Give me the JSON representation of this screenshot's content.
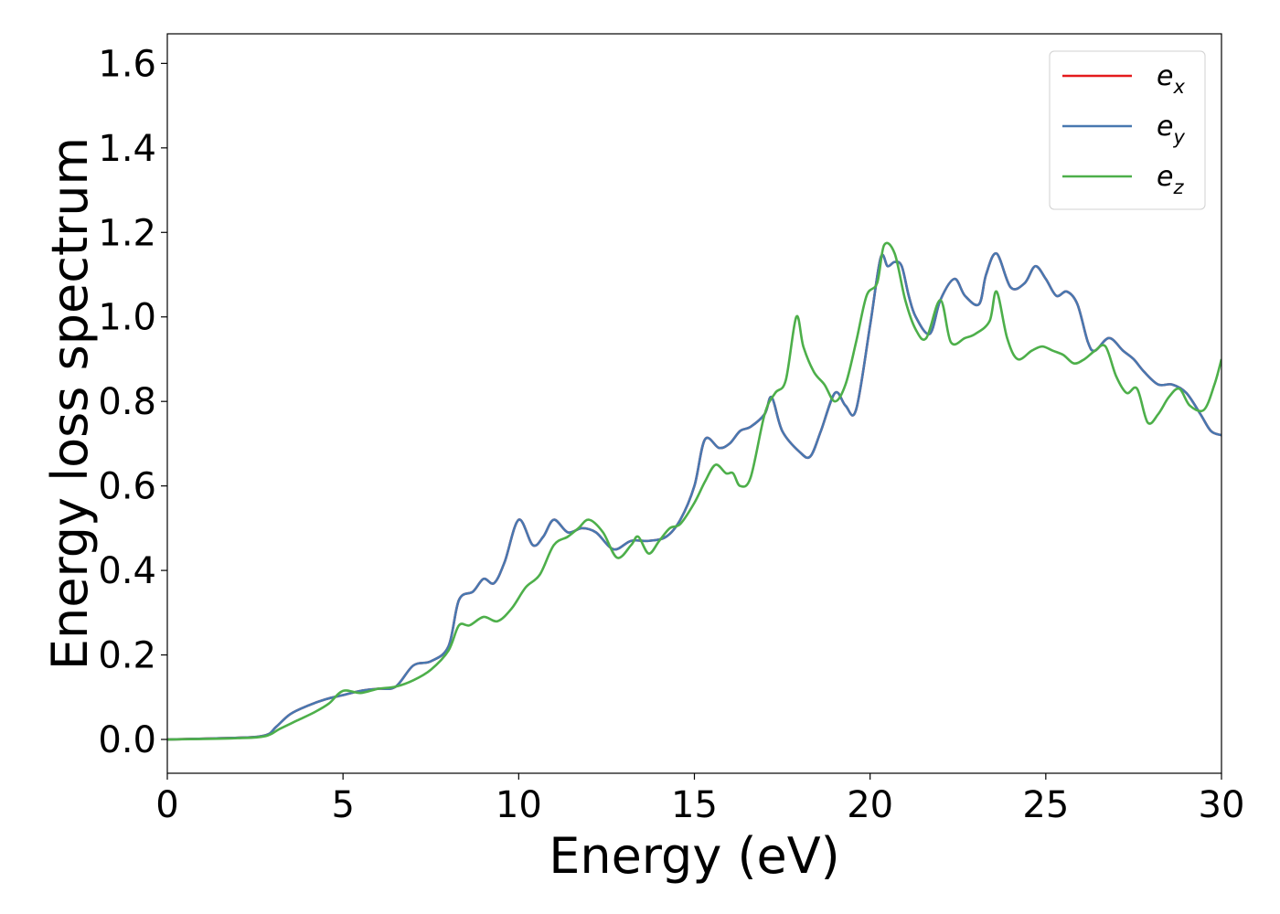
{
  "chart_data": {
    "type": "line",
    "title": "",
    "xlabel": "Energy (eV)",
    "ylabel": "Energy loss spectrum",
    "xlim": [
      0,
      30
    ],
    "ylim": [
      -0.08,
      1.67
    ],
    "xticks": [
      0,
      5,
      10,
      15,
      20,
      25,
      30
    ],
    "xtick_labels": [
      "0",
      "5",
      "10",
      "15",
      "20",
      "25",
      "30"
    ],
    "yticks": [
      0.0,
      0.2,
      0.4,
      0.6,
      0.8,
      1.0,
      1.2,
      1.4,
      1.6
    ],
    "ytick_labels": [
      "0.0",
      "0.2",
      "0.4",
      "0.6",
      "0.8",
      "1.0",
      "1.2",
      "1.4",
      "1.6"
    ],
    "grid": false,
    "legend_position": "top-right",
    "series": [
      {
        "name": "e_x",
        "legend_base": "e",
        "legend_sub": "x",
        "color": "#e41a1c",
        "x": [
          0,
          2,
          2.8,
          3.1,
          3.5,
          4.0,
          4.5,
          5.0,
          5.5,
          6.0,
          6.5,
          7.0,
          7.5,
          8.0,
          8.3,
          8.7,
          9.0,
          9.3,
          9.6,
          10.0,
          10.4,
          10.7,
          11.0,
          11.4,
          11.8,
          12.2,
          12.7,
          13.2,
          13.7,
          14.2,
          14.6,
          15.0,
          15.3,
          15.7,
          16.0,
          16.3,
          16.6,
          17.0,
          17.2,
          17.5,
          18.0,
          18.3,
          18.6,
          19.0,
          19.3,
          19.6,
          20.0,
          20.3,
          20.5,
          20.7,
          20.9,
          21.1,
          21.3,
          21.7,
          22.0,
          22.4,
          22.7,
          23.1,
          23.3,
          23.6,
          24.0,
          24.4,
          24.7,
          25.0,
          25.3,
          25.6,
          25.9,
          26.2,
          26.4,
          26.8,
          27.2,
          27.5,
          27.8,
          28.2,
          28.6,
          29.0,
          29.4,
          29.7,
          30.0
        ],
        "y": [
          0.0,
          0.004,
          0.01,
          0.03,
          0.06,
          0.08,
          0.095,
          0.105,
          0.115,
          0.12,
          0.125,
          0.175,
          0.185,
          0.22,
          0.33,
          0.35,
          0.38,
          0.37,
          0.42,
          0.52,
          0.46,
          0.48,
          0.52,
          0.49,
          0.5,
          0.49,
          0.45,
          0.47,
          0.47,
          0.48,
          0.52,
          0.6,
          0.71,
          0.69,
          0.7,
          0.73,
          0.74,
          0.77,
          0.81,
          0.73,
          0.68,
          0.67,
          0.73,
          0.82,
          0.79,
          0.78,
          0.98,
          1.14,
          1.12,
          1.13,
          1.12,
          1.05,
          1.0,
          0.96,
          1.04,
          1.09,
          1.05,
          1.03,
          1.1,
          1.15,
          1.07,
          1.08,
          1.12,
          1.09,
          1.05,
          1.06,
          1.03,
          0.94,
          0.92,
          0.95,
          0.92,
          0.9,
          0.87,
          0.84,
          0.84,
          0.82,
          0.77,
          0.73,
          0.72
        ]
      },
      {
        "name": "e_y",
        "legend_base": "e",
        "legend_sub": "y",
        "color": "#4878b0",
        "x": [
          0,
          2,
          2.8,
          3.1,
          3.5,
          4.0,
          4.5,
          5.0,
          5.5,
          6.0,
          6.5,
          7.0,
          7.5,
          8.0,
          8.3,
          8.7,
          9.0,
          9.3,
          9.6,
          10.0,
          10.4,
          10.7,
          11.0,
          11.4,
          11.8,
          12.2,
          12.7,
          13.2,
          13.7,
          14.2,
          14.6,
          15.0,
          15.3,
          15.7,
          16.0,
          16.3,
          16.6,
          17.0,
          17.2,
          17.5,
          18.0,
          18.3,
          18.6,
          19.0,
          19.3,
          19.6,
          20.0,
          20.3,
          20.5,
          20.7,
          20.9,
          21.1,
          21.3,
          21.7,
          22.0,
          22.4,
          22.7,
          23.1,
          23.3,
          23.6,
          24.0,
          24.4,
          24.7,
          25.0,
          25.3,
          25.6,
          25.9,
          26.2,
          26.4,
          26.8,
          27.2,
          27.5,
          27.8,
          28.2,
          28.6,
          29.0,
          29.4,
          29.7,
          30.0
        ],
        "y": [
          0.0,
          0.004,
          0.01,
          0.03,
          0.06,
          0.08,
          0.095,
          0.105,
          0.115,
          0.12,
          0.125,
          0.175,
          0.185,
          0.22,
          0.33,
          0.35,
          0.38,
          0.37,
          0.42,
          0.52,
          0.46,
          0.48,
          0.52,
          0.49,
          0.5,
          0.49,
          0.45,
          0.47,
          0.47,
          0.48,
          0.52,
          0.6,
          0.71,
          0.69,
          0.7,
          0.73,
          0.74,
          0.77,
          0.81,
          0.73,
          0.68,
          0.67,
          0.73,
          0.82,
          0.79,
          0.78,
          0.98,
          1.14,
          1.12,
          1.13,
          1.12,
          1.05,
          1.0,
          0.96,
          1.04,
          1.09,
          1.05,
          1.03,
          1.1,
          1.15,
          1.07,
          1.08,
          1.12,
          1.09,
          1.05,
          1.06,
          1.03,
          0.94,
          0.92,
          0.95,
          0.92,
          0.9,
          0.87,
          0.84,
          0.84,
          0.82,
          0.77,
          0.73,
          0.72
        ]
      },
      {
        "name": "e_z",
        "legend_base": "e",
        "legend_sub": "z",
        "color": "#4daf4a",
        "x": [
          0,
          2,
          2.8,
          3.2,
          3.7,
          4.2,
          4.6,
          5.0,
          5.5,
          6.0,
          6.5,
          7.0,
          7.5,
          8.0,
          8.3,
          8.6,
          9.0,
          9.4,
          9.8,
          10.2,
          10.6,
          11.0,
          11.4,
          11.7,
          12.0,
          12.4,
          12.8,
          13.2,
          13.4,
          13.7,
          14.0,
          14.3,
          14.6,
          15.0,
          15.3,
          15.6,
          15.9,
          16.1,
          16.3,
          16.6,
          17.0,
          17.3,
          17.6,
          17.9,
          18.1,
          18.4,
          18.7,
          19.0,
          19.3,
          19.6,
          19.9,
          20.2,
          20.4,
          20.7,
          21.0,
          21.3,
          21.6,
          22.0,
          22.3,
          22.7,
          23.0,
          23.4,
          23.6,
          23.9,
          24.2,
          24.6,
          24.9,
          25.2,
          25.5,
          25.8,
          26.1,
          26.4,
          26.7,
          27.0,
          27.3,
          27.6,
          27.9,
          28.2,
          28.5,
          28.8,
          29.1,
          29.5,
          29.8,
          30.0
        ],
        "y": [
          0.0,
          0.003,
          0.008,
          0.025,
          0.045,
          0.065,
          0.085,
          0.115,
          0.11,
          0.12,
          0.125,
          0.14,
          0.165,
          0.21,
          0.27,
          0.27,
          0.29,
          0.28,
          0.31,
          0.36,
          0.39,
          0.46,
          0.48,
          0.5,
          0.52,
          0.49,
          0.43,
          0.46,
          0.48,
          0.44,
          0.47,
          0.5,
          0.51,
          0.56,
          0.61,
          0.65,
          0.63,
          0.63,
          0.6,
          0.62,
          0.77,
          0.82,
          0.85,
          1.0,
          0.93,
          0.87,
          0.84,
          0.8,
          0.84,
          0.94,
          1.05,
          1.08,
          1.17,
          1.15,
          1.04,
          0.97,
          0.95,
          1.04,
          0.94,
          0.95,
          0.96,
          0.99,
          1.06,
          0.95,
          0.9,
          0.92,
          0.93,
          0.92,
          0.91,
          0.89,
          0.9,
          0.92,
          0.93,
          0.86,
          0.82,
          0.83,
          0.75,
          0.77,
          0.81,
          0.83,
          0.79,
          0.78,
          0.84,
          0.9
        ]
      }
    ]
  }
}
